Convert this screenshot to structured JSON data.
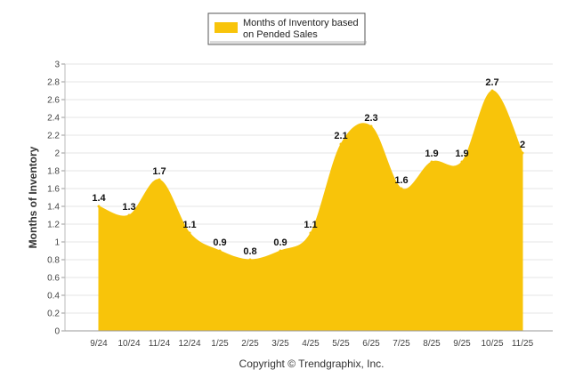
{
  "chart_data": {
    "type": "area",
    "title": "",
    "xlabel": "",
    "ylabel": "Months of Inventory",
    "ylim": [
      0,
      3
    ],
    "yticks": [
      "0",
      "0.2",
      "0.4",
      "0.6",
      "0.8",
      "1",
      "1.2",
      "1.4",
      "1.6",
      "1.8",
      "2",
      "2.2",
      "2.4",
      "2.6",
      "2.8",
      "3"
    ],
    "categories": [
      "9/24",
      "10/24",
      "11/24",
      "12/24",
      "1/25",
      "2/25",
      "3/25",
      "4/25",
      "5/25",
      "6/25",
      "7/25",
      "8/25",
      "9/25",
      "10/25",
      "11/25"
    ],
    "series": [
      {
        "name": "Months of Inventory based on Pended Sales",
        "values": [
          1.4,
          1.3,
          1.7,
          1.1,
          0.9,
          0.8,
          0.9,
          1.1,
          2.1,
          2.3,
          1.6,
          1.9,
          1.9,
          2.7,
          2
        ],
        "labels": [
          "1.4",
          "1.3",
          "1.7",
          "1.1",
          "0.9",
          "0.8",
          "0.9",
          "1.1",
          "2.1",
          "2.3",
          "1.6",
          "1.9",
          "1.9",
          "2.7",
          "2"
        ],
        "color": "#f8c40a"
      }
    ],
    "legend": {
      "position": "top-center",
      "line1": "Months of Inventory based",
      "line2": "on Pended Sales"
    },
    "grid": true,
    "gridColor": "#e6e6e6",
    "credit": "Copyright © Trendgraphix, Inc."
  }
}
